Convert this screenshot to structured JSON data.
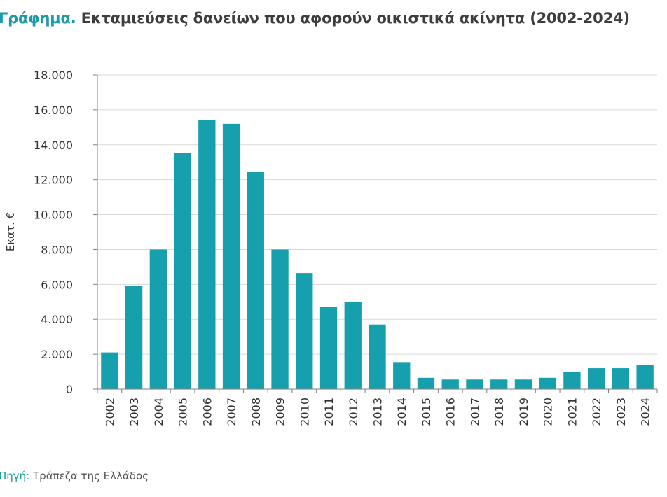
{
  "title": {
    "prefix": "Γράφημα.",
    "text": "Εκταμιεύσεις δανείων που αφορούν οικιστικά ακίνητα (2002-2024)"
  },
  "source": {
    "label": "Πηγή:",
    "text": "Τράπεζα της Ελλάδος"
  },
  "colors": {
    "bar": "#16a0ae",
    "grid": "#d9d9d9",
    "axis": "#7f7f7f",
    "accent": "#1c9aa8"
  },
  "chart_data": {
    "type": "bar",
    "ylabel": "Εκατ. €",
    "xlabel": "",
    "ylim": [
      0,
      18000
    ],
    "yticks": [
      0,
      2000,
      4000,
      6000,
      8000,
      10000,
      12000,
      14000,
      16000,
      18000
    ],
    "ytick_labels": [
      "0",
      "2.000",
      "4.000",
      "6.000",
      "8.000",
      "10.000",
      "12.000",
      "14.000",
      "16.000",
      "18.000"
    ],
    "grid": true,
    "categories": [
      "2002",
      "2003",
      "2004",
      "2005",
      "2006",
      "2007",
      "2008",
      "2009",
      "2010",
      "2011",
      "2012",
      "2013",
      "2014",
      "2015",
      "2016",
      "2017",
      "2018",
      "2019",
      "2020",
      "2021",
      "2022",
      "2023",
      "2024"
    ],
    "values": [
      2100,
      5900,
      8000,
      13550,
      15400,
      15200,
      12450,
      8000,
      6650,
      4700,
      5000,
      3700,
      1550,
      650,
      550,
      550,
      550,
      550,
      650,
      1000,
      1200,
      1200,
      1400
    ]
  }
}
